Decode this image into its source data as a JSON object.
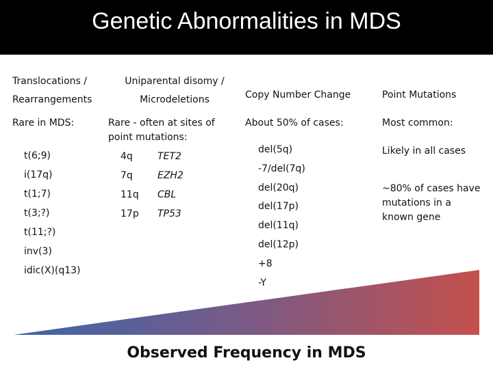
{
  "title": "Genetic Abnormalities in MDS",
  "columns": [
    {
      "header": "Translocations / Rearrangements",
      "summary": "Rare in MDS:",
      "items": [
        "t(6;9)",
        "i(17q)",
        "t(1;7)",
        "t(3;?)",
        "t(11;?)",
        "inv(3)",
        "idic(X)(q13)"
      ]
    },
    {
      "header": "Uniparental disomy / Microdeletions",
      "summary": "Rare - often at sites of point mutations:",
      "items": [
        {
          "region": "4q",
          "gene": "TET2"
        },
        {
          "region": "7q",
          "gene": "EZH2"
        },
        {
          "region": "11q",
          "gene": "CBL"
        },
        {
          "region": "17p",
          "gene": "TP53"
        }
      ]
    },
    {
      "header": "Copy Number Change",
      "summary": "About 50% of cases:",
      "items": [
        "del(5q)",
        "-7/del(7q)",
        "del(20q)",
        "del(17p)",
        "del(11q)",
        "del(12p)",
        "+8",
        "-Y"
      ]
    },
    {
      "header": "Point Mutations",
      "summary": "Most common:",
      "items": [
        "Likely in all cases",
        "~80% of cases have mutations in a known gene"
      ]
    }
  ],
  "footer": "Observed Frequency in MDS"
}
